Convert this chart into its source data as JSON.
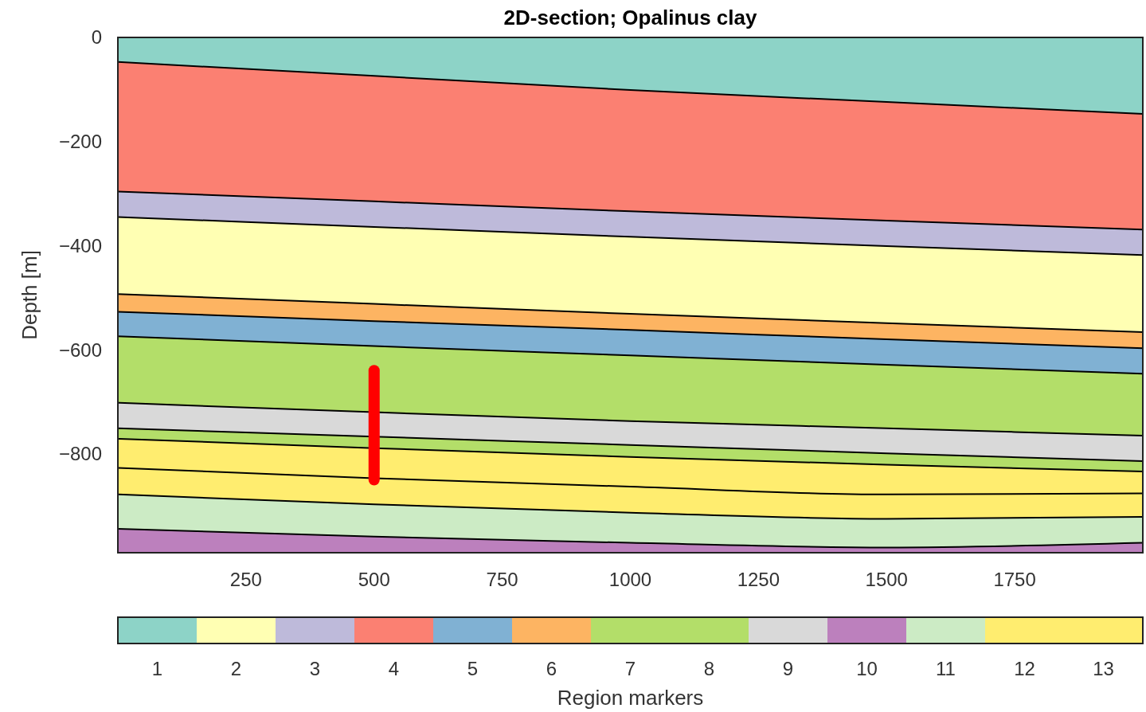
{
  "chart_data": {
    "type": "area",
    "title": "2D-section; Opalinus clay",
    "ylabel": "Depth [m]",
    "clabel": "Region markers",
    "stacked": true,
    "grid": false,
    "x": [
      0,
      500,
      1000,
      1500,
      2000
    ],
    "xlim": [
      0,
      2000
    ],
    "xticks": [
      250,
      500,
      750,
      1000,
      1250,
      1500,
      1750
    ],
    "ylim": [
      -990,
      0
    ],
    "yticks": [
      0,
      {
        "value": -200,
        "label": "−200"
      },
      {
        "value": -400,
        "label": "−400"
      },
      {
        "value": -600,
        "label": "−600"
      },
      {
        "value": -800,
        "label": "−800"
      }
    ],
    "series": [
      {
        "color": "#8dd3c7",
        "values": [
          -47,
          -74,
          -101,
          -124,
          -147
        ]
      },
      {
        "color": "#fb8072",
        "values": [
          -249,
          -241,
          -233,
          -228,
          -222
        ]
      },
      {
        "color": "#bebada",
        "values": [
          -49,
          -49,
          -49,
          -49,
          -49
        ]
      },
      {
        "color": "#ffffb3",
        "values": [
          -148,
          -148,
          -148,
          -148,
          -148
        ]
      },
      {
        "color": "#fdb462",
        "values": [
          -34,
          -33,
          -31,
          -31,
          -31
        ]
      },
      {
        "color": "#80b1d3",
        "values": [
          -47,
          -48,
          -49,
          -49,
          -49
        ]
      },
      {
        "color": "#b3de69",
        "values": [
          -128,
          -127,
          -126,
          -122,
          -119
        ]
      },
      {
        "color": "#d9d9d9",
        "values": [
          -49,
          -47,
          -46,
          -48,
          -49
        ]
      },
      {
        "color": "#b3de69",
        "values": [
          -20,
          -22,
          -23,
          -22,
          -20
        ]
      },
      {
        "color": "#ffed6f",
        "values": [
          -56,
          -58,
          -57,
          -57,
          -42
        ]
      },
      {
        "color": "#ffed6f",
        "values": [
          -51,
          -50,
          -50,
          -47,
          -45
        ]
      },
      {
        "color": "#ccebc5",
        "values": [
          -66,
          -62,
          -58,
          -55,
          -50
        ]
      },
      {
        "color": "#bc80bd",
        "values": [
          -46,
          -31,
          -19,
          -10,
          -19
        ]
      },
      {
        "type": "line",
        "color": "#ff0000",
        "x": [
          500,
          500
        ],
        "values": [
          -640,
          -850
        ]
      }
    ],
    "clim": [
      0.5,
      13.5
    ],
    "cticks": [
      1,
      2,
      3,
      4,
      5,
      6,
      7,
      8,
      9,
      10,
      11,
      12,
      13
    ],
    "colors": [
      "#8dd3c7",
      "#ffffb3",
      "#bebada",
      "#fb8072",
      "#80b1d3",
      "#fdb462",
      "#b3de69",
      "#b3de69",
      "#d9d9d9",
      "#bc80bd",
      "#ccebc5",
      "#ffed6f",
      "#ffed6f"
    ]
  }
}
